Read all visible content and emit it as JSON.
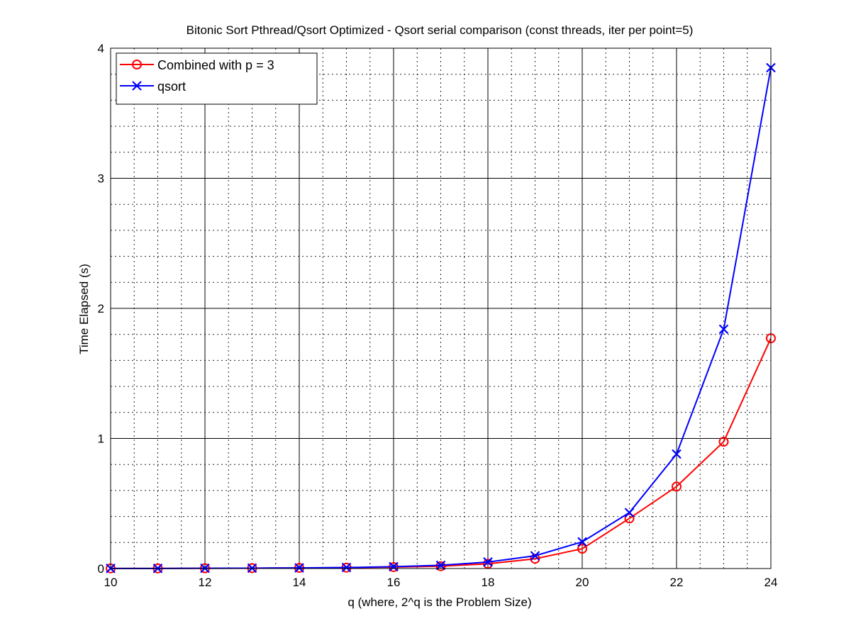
{
  "chart_data": {
    "type": "line",
    "title": "Bitonic Sort Pthread/Qsort Optimized - Qsort serial comparison (const threads, iter per point=5)",
    "xlabel": "q (where, 2^q is the Problem Size)",
    "ylabel": "Time Elapsed (s)",
    "xlim": [
      10,
      24
    ],
    "ylim": [
      0,
      4
    ],
    "xticks": [
      10,
      12,
      14,
      16,
      18,
      20,
      22,
      24
    ],
    "yticks": [
      0,
      1,
      2,
      3,
      4
    ],
    "grid": true,
    "minor_grid": true,
    "legend_position": "top-left",
    "x": [
      10,
      11,
      12,
      13,
      14,
      15,
      16,
      17,
      18,
      19,
      20,
      21,
      22,
      23,
      24
    ],
    "series": [
      {
        "name": "Combined with p = 3",
        "color": "#ff0000",
        "marker": "circle",
        "values": [
          0.001,
          0.001,
          0.002,
          0.003,
          0.005,
          0.007,
          0.011,
          0.018,
          0.036,
          0.075,
          0.152,
          0.385,
          0.63,
          0.975,
          1.77
        ]
      },
      {
        "name": "qsort",
        "color": "#0000ff",
        "marker": "x",
        "values": [
          0.001,
          0.001,
          0.002,
          0.003,
          0.005,
          0.008,
          0.014,
          0.025,
          0.05,
          0.098,
          0.205,
          0.43,
          0.88,
          1.84,
          3.85
        ]
      }
    ]
  }
}
